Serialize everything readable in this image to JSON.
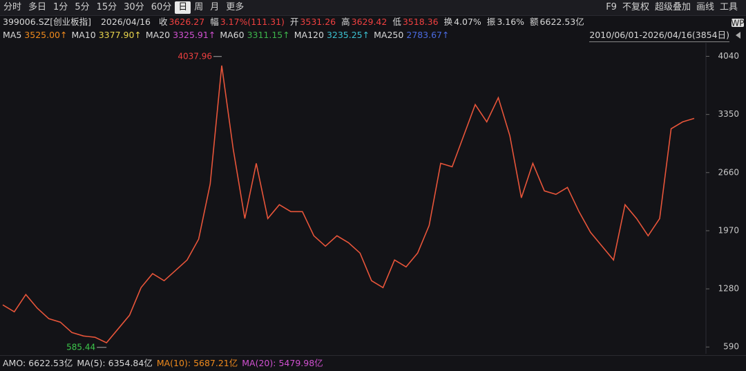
{
  "toolbar": {
    "items": [
      "分时",
      "多日",
      "1分",
      "5分",
      "15分",
      "30分",
      "60分",
      "日",
      "周",
      "月",
      "更多"
    ],
    "active": 7,
    "right": [
      "F9",
      "不复权",
      "超级叠加",
      "画线",
      "工具"
    ]
  },
  "info": {
    "code": "399006.SZ[创业板指]",
    "date": "2026/04/16",
    "fields": [
      {
        "label": "收",
        "value": "3626.27",
        "color": "#f04040"
      },
      {
        "label": "幅",
        "value": "3.17%(111.31)",
        "color": "#f04040"
      },
      {
        "label": "开",
        "value": "3531.26",
        "color": "#f04040"
      },
      {
        "label": "高",
        "value": "3629.42",
        "color": "#f04040"
      },
      {
        "label": "低",
        "value": "3518.36",
        "color": "#f04040"
      },
      {
        "label": "换",
        "value": "4.07%",
        "color": "#d8d8d8"
      },
      {
        "label": "振",
        "value": "3.16%",
        "color": "#d8d8d8"
      },
      {
        "label": "额",
        "value": "6622.53亿",
        "color": "#d8d8d8"
      }
    ]
  },
  "ma": [
    {
      "name": "MA5",
      "value": "3525.00↑",
      "color": "#f08a1c"
    },
    {
      "name": "MA10",
      "value": "3377.90↑",
      "color": "#e8d44d"
    },
    {
      "name": "MA20",
      "value": "3325.91↑",
      "color": "#d050d0"
    },
    {
      "name": "MA60",
      "value": "3311.15↑",
      "color": "#3cb44b"
    },
    {
      "name": "MA120",
      "value": "3235.25↑",
      "color": "#3cc0d0"
    },
    {
      "name": "MA250",
      "value": "2783.67↑",
      "color": "#4a6ae0"
    }
  ],
  "range": "2010/06/01-2026/04/16(3854日)",
  "bottom": [
    {
      "label": "AMO:",
      "value": "6622.53亿",
      "color": "#d8d8d8"
    },
    {
      "label": "MA(5):",
      "value": "6354.84亿",
      "color": "#d8d8d8"
    },
    {
      "label": "MA(10):",
      "value": "5687.21亿",
      "color": "#f08a1c"
    },
    {
      "label": "MA(20):",
      "value": "5479.98亿",
      "color": "#d050d0"
    }
  ],
  "chart_data": {
    "type": "line",
    "color": "#e8553a",
    "values": [
      1090,
      1008,
      1213,
      1050,
      926,
      885,
      762,
      721,
      705,
      640,
      803,
      967,
      1295,
      1460,
      1377,
      1500,
      1623,
      1870,
      2525,
      3930,
      2935,
      2115,
      2770,
      2115,
      2279,
      2197,
      2197,
      1910,
      1787,
      1910,
      1828,
      1705,
      1377,
      1295,
      1623,
      1541,
      1705,
      2033,
      2770,
      2729,
      3098,
      3467,
      3262,
      3549,
      3098,
      2361,
      2770,
      2443,
      2402,
      2484,
      2197,
      1951,
      1787,
      1623,
      2279,
      2115,
      1910,
      2115,
      3180,
      3262,
      3303
    ],
    "ylim": [
      510,
      4200
    ],
    "yticks": [
      590,
      1280,
      1970,
      2660,
      3350,
      4040
    ],
    "grid": false,
    "annotations": [
      {
        "label": "4037.96",
        "value": 4037.96,
        "color": "#f04040"
      },
      {
        "label": "585.44",
        "value": 585.44,
        "color": "#3cc84b"
      }
    ]
  }
}
